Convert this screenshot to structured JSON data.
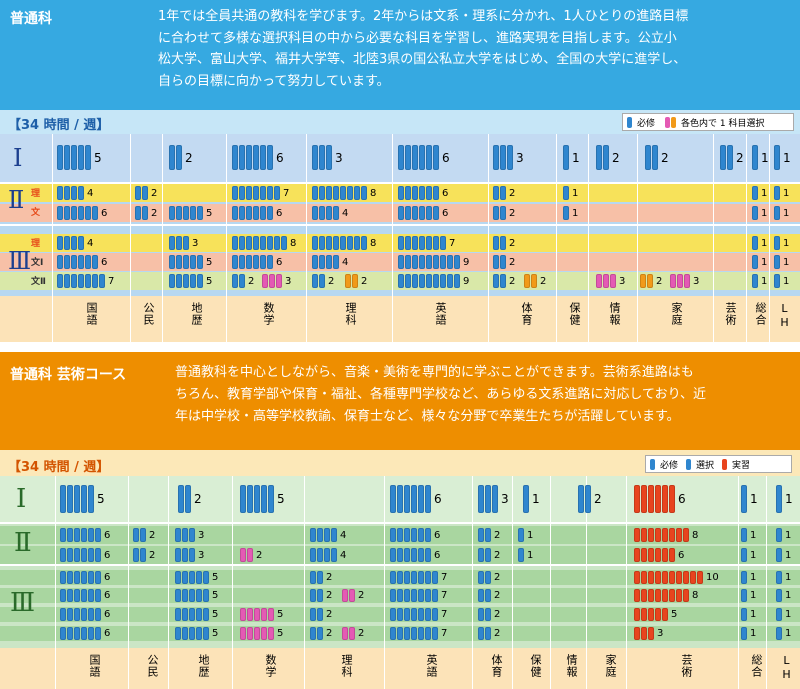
{
  "sec1": {
    "title": "普通科",
    "desc": [
      "1年では全員共通の教科を学びます。2年からは文系・理系に分かれ、1人ひとりの進路目標",
      "に合わせて多様な選択科目の中から必要な科目を学習し、進路実現を目指します。公立小",
      "松大学、富山大学、福井大学等、北陸3県の国公私立大学をはじめ、全国の大学に進学し、",
      "自らの目標に向かって努力しています。"
    ],
    "hours": "【34 時間 / 週】",
    "legend": [
      "必修",
      "各色内で 1 科目選択"
    ],
    "row_labels": [
      "Ⅰ",
      "Ⅱ",
      "Ⅲ"
    ],
    "sub_labels": [
      "理",
      "文",
      "理",
      "文Ⅰ",
      "文Ⅱ"
    ],
    "subjects": [
      "国語",
      "公民",
      "地歴",
      "数学",
      "理科",
      "英語",
      "体育",
      "保健",
      "情報",
      "家庭",
      "芸術",
      "総合",
      "LH"
    ],
    "cells": [
      {
        "r": 0,
        "x": 57,
        "n": 5,
        "c": "b",
        "t": "5"
      },
      {
        "r": 0,
        "x": 169,
        "n": 2,
        "c": "b",
        "t": "2"
      },
      {
        "r": 0,
        "x": 232,
        "n": 6,
        "c": "b",
        "t": "6"
      },
      {
        "r": 0,
        "x": 312,
        "n": 3,
        "c": "b",
        "t": "3"
      },
      {
        "r": 0,
        "x": 398,
        "n": 6,
        "c": "b",
        "t": "6"
      },
      {
        "r": 0,
        "x": 493,
        "n": 3,
        "c": "b",
        "t": "3"
      },
      {
        "r": 0,
        "x": 563,
        "n": 1,
        "c": "b",
        "t": "1"
      },
      {
        "r": 0,
        "x": 596,
        "n": 2,
        "c": "b",
        "t": "2"
      },
      {
        "r": 0,
        "x": 645,
        "n": 2,
        "c": "b",
        "t": "2"
      },
      {
        "r": 0,
        "x": 720,
        "n": 2,
        "c": "b",
        "t": "2"
      },
      {
        "r": 0,
        "x": 752,
        "n": 1,
        "c": "b",
        "t": "1"
      },
      {
        "r": 0,
        "x": 774,
        "n": 1,
        "c": "b",
        "t": "1"
      },
      {
        "r": 1,
        "x": 57,
        "n": 4,
        "c": "b",
        "t": "4"
      },
      {
        "r": 1,
        "x": 135,
        "n": 2,
        "c": "b",
        "t": "2"
      },
      {
        "r": 1,
        "x": 232,
        "n": 7,
        "c": "b",
        "t": "7"
      },
      {
        "r": 1,
        "x": 312,
        "n": 8,
        "c": "b",
        "t": "8"
      },
      {
        "r": 1,
        "x": 398,
        "n": 6,
        "c": "b",
        "t": "6"
      },
      {
        "r": 1,
        "x": 493,
        "n": 2,
        "c": "b",
        "t": "2"
      },
      {
        "r": 1,
        "x": 563,
        "n": 1,
        "c": "b",
        "t": "1"
      },
      {
        "r": 1,
        "x": 752,
        "n": 1,
        "c": "b",
        "t": "1"
      },
      {
        "r": 1,
        "x": 774,
        "n": 1,
        "c": "b",
        "t": "1"
      },
      {
        "r": 2,
        "x": 57,
        "n": 6,
        "c": "b",
        "t": "6"
      },
      {
        "r": 2,
        "x": 135,
        "n": 2,
        "c": "b",
        "t": "2"
      },
      {
        "r": 2,
        "x": 169,
        "n": 5,
        "c": "b",
        "t": "5"
      },
      {
        "r": 2,
        "x": 232,
        "n": 6,
        "c": "b",
        "t": "6"
      },
      {
        "r": 2,
        "x": 312,
        "n": 4,
        "c": "b",
        "t": "4"
      },
      {
        "r": 2,
        "x": 398,
        "n": 6,
        "c": "b",
        "t": "6"
      },
      {
        "r": 2,
        "x": 493,
        "n": 2,
        "c": "b",
        "t": "2"
      },
      {
        "r": 2,
        "x": 563,
        "n": 1,
        "c": "b",
        "t": "1"
      },
      {
        "r": 2,
        "x": 752,
        "n": 1,
        "c": "b",
        "t": "1"
      },
      {
        "r": 2,
        "x": 774,
        "n": 1,
        "c": "b",
        "t": "1"
      },
      {
        "r": 3,
        "x": 57,
        "n": 4,
        "c": "b",
        "t": "4"
      },
      {
        "r": 3,
        "x": 169,
        "n": 3,
        "c": "b",
        "t": "3"
      },
      {
        "r": 3,
        "x": 232,
        "n": 8,
        "c": "b",
        "t": "8"
      },
      {
        "r": 3,
        "x": 312,
        "n": 8,
        "c": "b",
        "t": "8"
      },
      {
        "r": 3,
        "x": 398,
        "n": 7,
        "c": "b",
        "t": "7"
      },
      {
        "r": 3,
        "x": 493,
        "n": 2,
        "c": "b",
        "t": "2"
      },
      {
        "r": 3,
        "x": 752,
        "n": 1,
        "c": "b",
        "t": "1"
      },
      {
        "r": 3,
        "x": 774,
        "n": 1,
        "c": "b",
        "t": "1"
      },
      {
        "r": 4,
        "x": 57,
        "n": 6,
        "c": "b",
        "t": "6"
      },
      {
        "r": 4,
        "x": 169,
        "n": 5,
        "c": "b",
        "t": "5"
      },
      {
        "r": 4,
        "x": 232,
        "n": 6,
        "c": "b",
        "t": "6"
      },
      {
        "r": 4,
        "x": 312,
        "n": 4,
        "c": "b",
        "t": "4"
      },
      {
        "r": 4,
        "x": 398,
        "n": 9,
        "c": "b",
        "t": "9"
      },
      {
        "r": 4,
        "x": 493,
        "n": 2,
        "c": "b",
        "t": "2"
      },
      {
        "r": 4,
        "x": 752,
        "n": 1,
        "c": "b",
        "t": "1"
      },
      {
        "r": 4,
        "x": 774,
        "n": 1,
        "c": "b",
        "t": "1"
      },
      {
        "r": 5,
        "x": 57,
        "n": 7,
        "c": "b",
        "t": "7"
      },
      {
        "r": 5,
        "x": 169,
        "n": 5,
        "c": "b",
        "t": "5"
      },
      {
        "r": 5,
        "x": 232,
        "n": 2,
        "c": "b",
        "t": "2"
      },
      {
        "r": 5,
        "x": 262,
        "n": 3,
        "c": "p",
        "t": "3"
      },
      {
        "r": 5,
        "x": 312,
        "n": 2,
        "c": "b",
        "t": "2"
      },
      {
        "r": 5,
        "x": 345,
        "n": 2,
        "c": "o",
        "t": "2"
      },
      {
        "r": 5,
        "x": 398,
        "n": 9,
        "c": "b",
        "t": "9"
      },
      {
        "r": 5,
        "x": 493,
        "n": 2,
        "c": "b",
        "t": "2"
      },
      {
        "r": 5,
        "x": 524,
        "n": 2,
        "c": "o",
        "t": "2"
      },
      {
        "r": 5,
        "x": 596,
        "n": 3,
        "c": "p",
        "t": "3"
      },
      {
        "r": 5,
        "x": 640,
        "n": 2,
        "c": "o",
        "t": "2"
      },
      {
        "r": 5,
        "x": 670,
        "n": 3,
        "c": "p",
        "t": "3"
      },
      {
        "r": 5,
        "x": 752,
        "n": 1,
        "c": "b",
        "t": "1"
      },
      {
        "r": 5,
        "x": 774,
        "n": 1,
        "c": "b",
        "t": "1"
      }
    ]
  },
  "sec2": {
    "title": "普通科 芸術コース",
    "desc": [
      "普通教科を中心としながら、音楽・美術を専門的に学ぶことができます。芸術系進路はも",
      "ちろん、教育学部や保育・福祉、各種専門学校など、あらゆる文系進路に対応しており、近",
      "年は中学校・高等学校教諭、保育士など、様々な分野で卒業生たちが活躍しています。"
    ],
    "hours": "【34 時間 / 週】",
    "legend": [
      "必修",
      "選択",
      "実習"
    ],
    "row_labels": [
      "Ⅰ",
      "Ⅱ",
      "Ⅲ"
    ],
    "subjects": [
      "国語",
      "公民",
      "地歴",
      "数学",
      "理科",
      "英語",
      "体育",
      "保健",
      "情報",
      "家庭",
      "芸術",
      "総合",
      "LH"
    ],
    "cells": [
      {
        "r": 0,
        "x": 60,
        "n": 5,
        "c": "b",
        "t": "5"
      },
      {
        "r": 0,
        "x": 178,
        "n": 2,
        "c": "b",
        "t": "2"
      },
      {
        "r": 0,
        "x": 240,
        "n": 5,
        "c": "b",
        "t": "5"
      },
      {
        "r": 0,
        "x": 390,
        "n": 6,
        "c": "b",
        "t": "6"
      },
      {
        "r": 0,
        "x": 478,
        "n": 3,
        "c": "b",
        "t": "3"
      },
      {
        "r": 0,
        "x": 523,
        "n": 1,
        "c": "b",
        "t": "1"
      },
      {
        "r": 0,
        "x": 578,
        "n": 2,
        "c": "b",
        "t": "2"
      },
      {
        "r": 0,
        "x": 634,
        "n": 6,
        "c": "r",
        "t": "6"
      },
      {
        "r": 0,
        "x": 741,
        "n": 1,
        "c": "b",
        "t": "1"
      },
      {
        "r": 0,
        "x": 776,
        "n": 1,
        "c": "b",
        "t": "1"
      },
      {
        "r": 1,
        "x": 60,
        "n": 6,
        "c": "b",
        "t": "6"
      },
      {
        "r": 1,
        "x": 133,
        "n": 2,
        "c": "b",
        "t": "2"
      },
      {
        "r": 1,
        "x": 175,
        "n": 3,
        "c": "b",
        "t": "3"
      },
      {
        "r": 1,
        "x": 310,
        "n": 4,
        "c": "b",
        "t": "4"
      },
      {
        "r": 1,
        "x": 390,
        "n": 6,
        "c": "b",
        "t": "6"
      },
      {
        "r": 1,
        "x": 478,
        "n": 2,
        "c": "b",
        "t": "2"
      },
      {
        "r": 1,
        "x": 518,
        "n": 1,
        "c": "b",
        "t": "1"
      },
      {
        "r": 1,
        "x": 634,
        "n": 8,
        "c": "r",
        "t": "8"
      },
      {
        "r": 1,
        "x": 741,
        "n": 1,
        "c": "b",
        "t": "1"
      },
      {
        "r": 1,
        "x": 776,
        "n": 1,
        "c": "b",
        "t": "1"
      },
      {
        "r": 2,
        "x": 60,
        "n": 6,
        "c": "b",
        "t": "6"
      },
      {
        "r": 2,
        "x": 133,
        "n": 2,
        "c": "b",
        "t": "2"
      },
      {
        "r": 2,
        "x": 175,
        "n": 3,
        "c": "b",
        "t": "3"
      },
      {
        "r": 2,
        "x": 240,
        "n": 2,
        "c": "p",
        "t": "2"
      },
      {
        "r": 2,
        "x": 310,
        "n": 4,
        "c": "b",
        "t": "4"
      },
      {
        "r": 2,
        "x": 390,
        "n": 6,
        "c": "b",
        "t": "6"
      },
      {
        "r": 2,
        "x": 478,
        "n": 2,
        "c": "b",
        "t": "2"
      },
      {
        "r": 2,
        "x": 518,
        "n": 1,
        "c": "b",
        "t": "1"
      },
      {
        "r": 2,
        "x": 634,
        "n": 6,
        "c": "r",
        "t": "6"
      },
      {
        "r": 2,
        "x": 741,
        "n": 1,
        "c": "b",
        "t": "1"
      },
      {
        "r": 2,
        "x": 776,
        "n": 1,
        "c": "b",
        "t": "1"
      },
      {
        "r": 3,
        "x": 60,
        "n": 6,
        "c": "b",
        "t": "6"
      },
      {
        "r": 3,
        "x": 175,
        "n": 5,
        "c": "b",
        "t": "5"
      },
      {
        "r": 3,
        "x": 310,
        "n": 2,
        "c": "b",
        "t": "2"
      },
      {
        "r": 3,
        "x": 390,
        "n": 7,
        "c": "b",
        "t": "7"
      },
      {
        "r": 3,
        "x": 478,
        "n": 2,
        "c": "b",
        "t": "2"
      },
      {
        "r": 3,
        "x": 634,
        "n": 10,
        "c": "r",
        "t": "10"
      },
      {
        "r": 3,
        "x": 741,
        "n": 1,
        "c": "b",
        "t": "1"
      },
      {
        "r": 3,
        "x": 776,
        "n": 1,
        "c": "b",
        "t": "1"
      },
      {
        "r": 4,
        "x": 60,
        "n": 6,
        "c": "b",
        "t": "6"
      },
      {
        "r": 4,
        "x": 175,
        "n": 5,
        "c": "b",
        "t": "5"
      },
      {
        "r": 4,
        "x": 310,
        "n": 2,
        "c": "b",
        "t": "2"
      },
      {
        "r": 4,
        "x": 342,
        "n": 2,
        "c": "p",
        "t": "2"
      },
      {
        "r": 4,
        "x": 390,
        "n": 7,
        "c": "b",
        "t": "7"
      },
      {
        "r": 4,
        "x": 478,
        "n": 2,
        "c": "b",
        "t": "2"
      },
      {
        "r": 4,
        "x": 634,
        "n": 8,
        "c": "r",
        "t": "8"
      },
      {
        "r": 4,
        "x": 741,
        "n": 1,
        "c": "b",
        "t": "1"
      },
      {
        "r": 4,
        "x": 776,
        "n": 1,
        "c": "b",
        "t": "1"
      },
      {
        "r": 5,
        "x": 60,
        "n": 6,
        "c": "b",
        "t": "6"
      },
      {
        "r": 5,
        "x": 175,
        "n": 5,
        "c": "b",
        "t": "5"
      },
      {
        "r": 5,
        "x": 240,
        "n": 5,
        "c": "p",
        "t": "5"
      },
      {
        "r": 5,
        "x": 310,
        "n": 2,
        "c": "b",
        "t": "2"
      },
      {
        "r": 5,
        "x": 390,
        "n": 7,
        "c": "b",
        "t": "7"
      },
      {
        "r": 5,
        "x": 478,
        "n": 2,
        "c": "b",
        "t": "2"
      },
      {
        "r": 5,
        "x": 634,
        "n": 5,
        "c": "r",
        "t": "5"
      },
      {
        "r": 5,
        "x": 741,
        "n": 1,
        "c": "b",
        "t": "1"
      },
      {
        "r": 5,
        "x": 776,
        "n": 1,
        "c": "b",
        "t": "1"
      },
      {
        "r": 6,
        "x": 60,
        "n": 6,
        "c": "b",
        "t": "6"
      },
      {
        "r": 6,
        "x": 175,
        "n": 5,
        "c": "b",
        "t": "5"
      },
      {
        "r": 6,
        "x": 240,
        "n": 5,
        "c": "p",
        "t": "5"
      },
      {
        "r": 6,
        "x": 310,
        "n": 2,
        "c": "b",
        "t": "2"
      },
      {
        "r": 6,
        "x": 342,
        "n": 2,
        "c": "p",
        "t": "2"
      },
      {
        "r": 6,
        "x": 390,
        "n": 7,
        "c": "b",
        "t": "7"
      },
      {
        "r": 6,
        "x": 478,
        "n": 2,
        "c": "b",
        "t": "2"
      },
      {
        "r": 6,
        "x": 634,
        "n": 3,
        "c": "r",
        "t": "3"
      },
      {
        "r": 6,
        "x": 741,
        "n": 1,
        "c": "b",
        "t": "1"
      },
      {
        "r": 6,
        "x": 776,
        "n": 1,
        "c": "b",
        "t": "1"
      }
    ]
  },
  "colors": {
    "blue": "#2f86cf",
    "pink": "#e45ab4",
    "orange": "#f19a1a",
    "red": "#e8441e",
    "hdr1": "#36a9e1",
    "hdr2": "#ee8e00"
  }
}
